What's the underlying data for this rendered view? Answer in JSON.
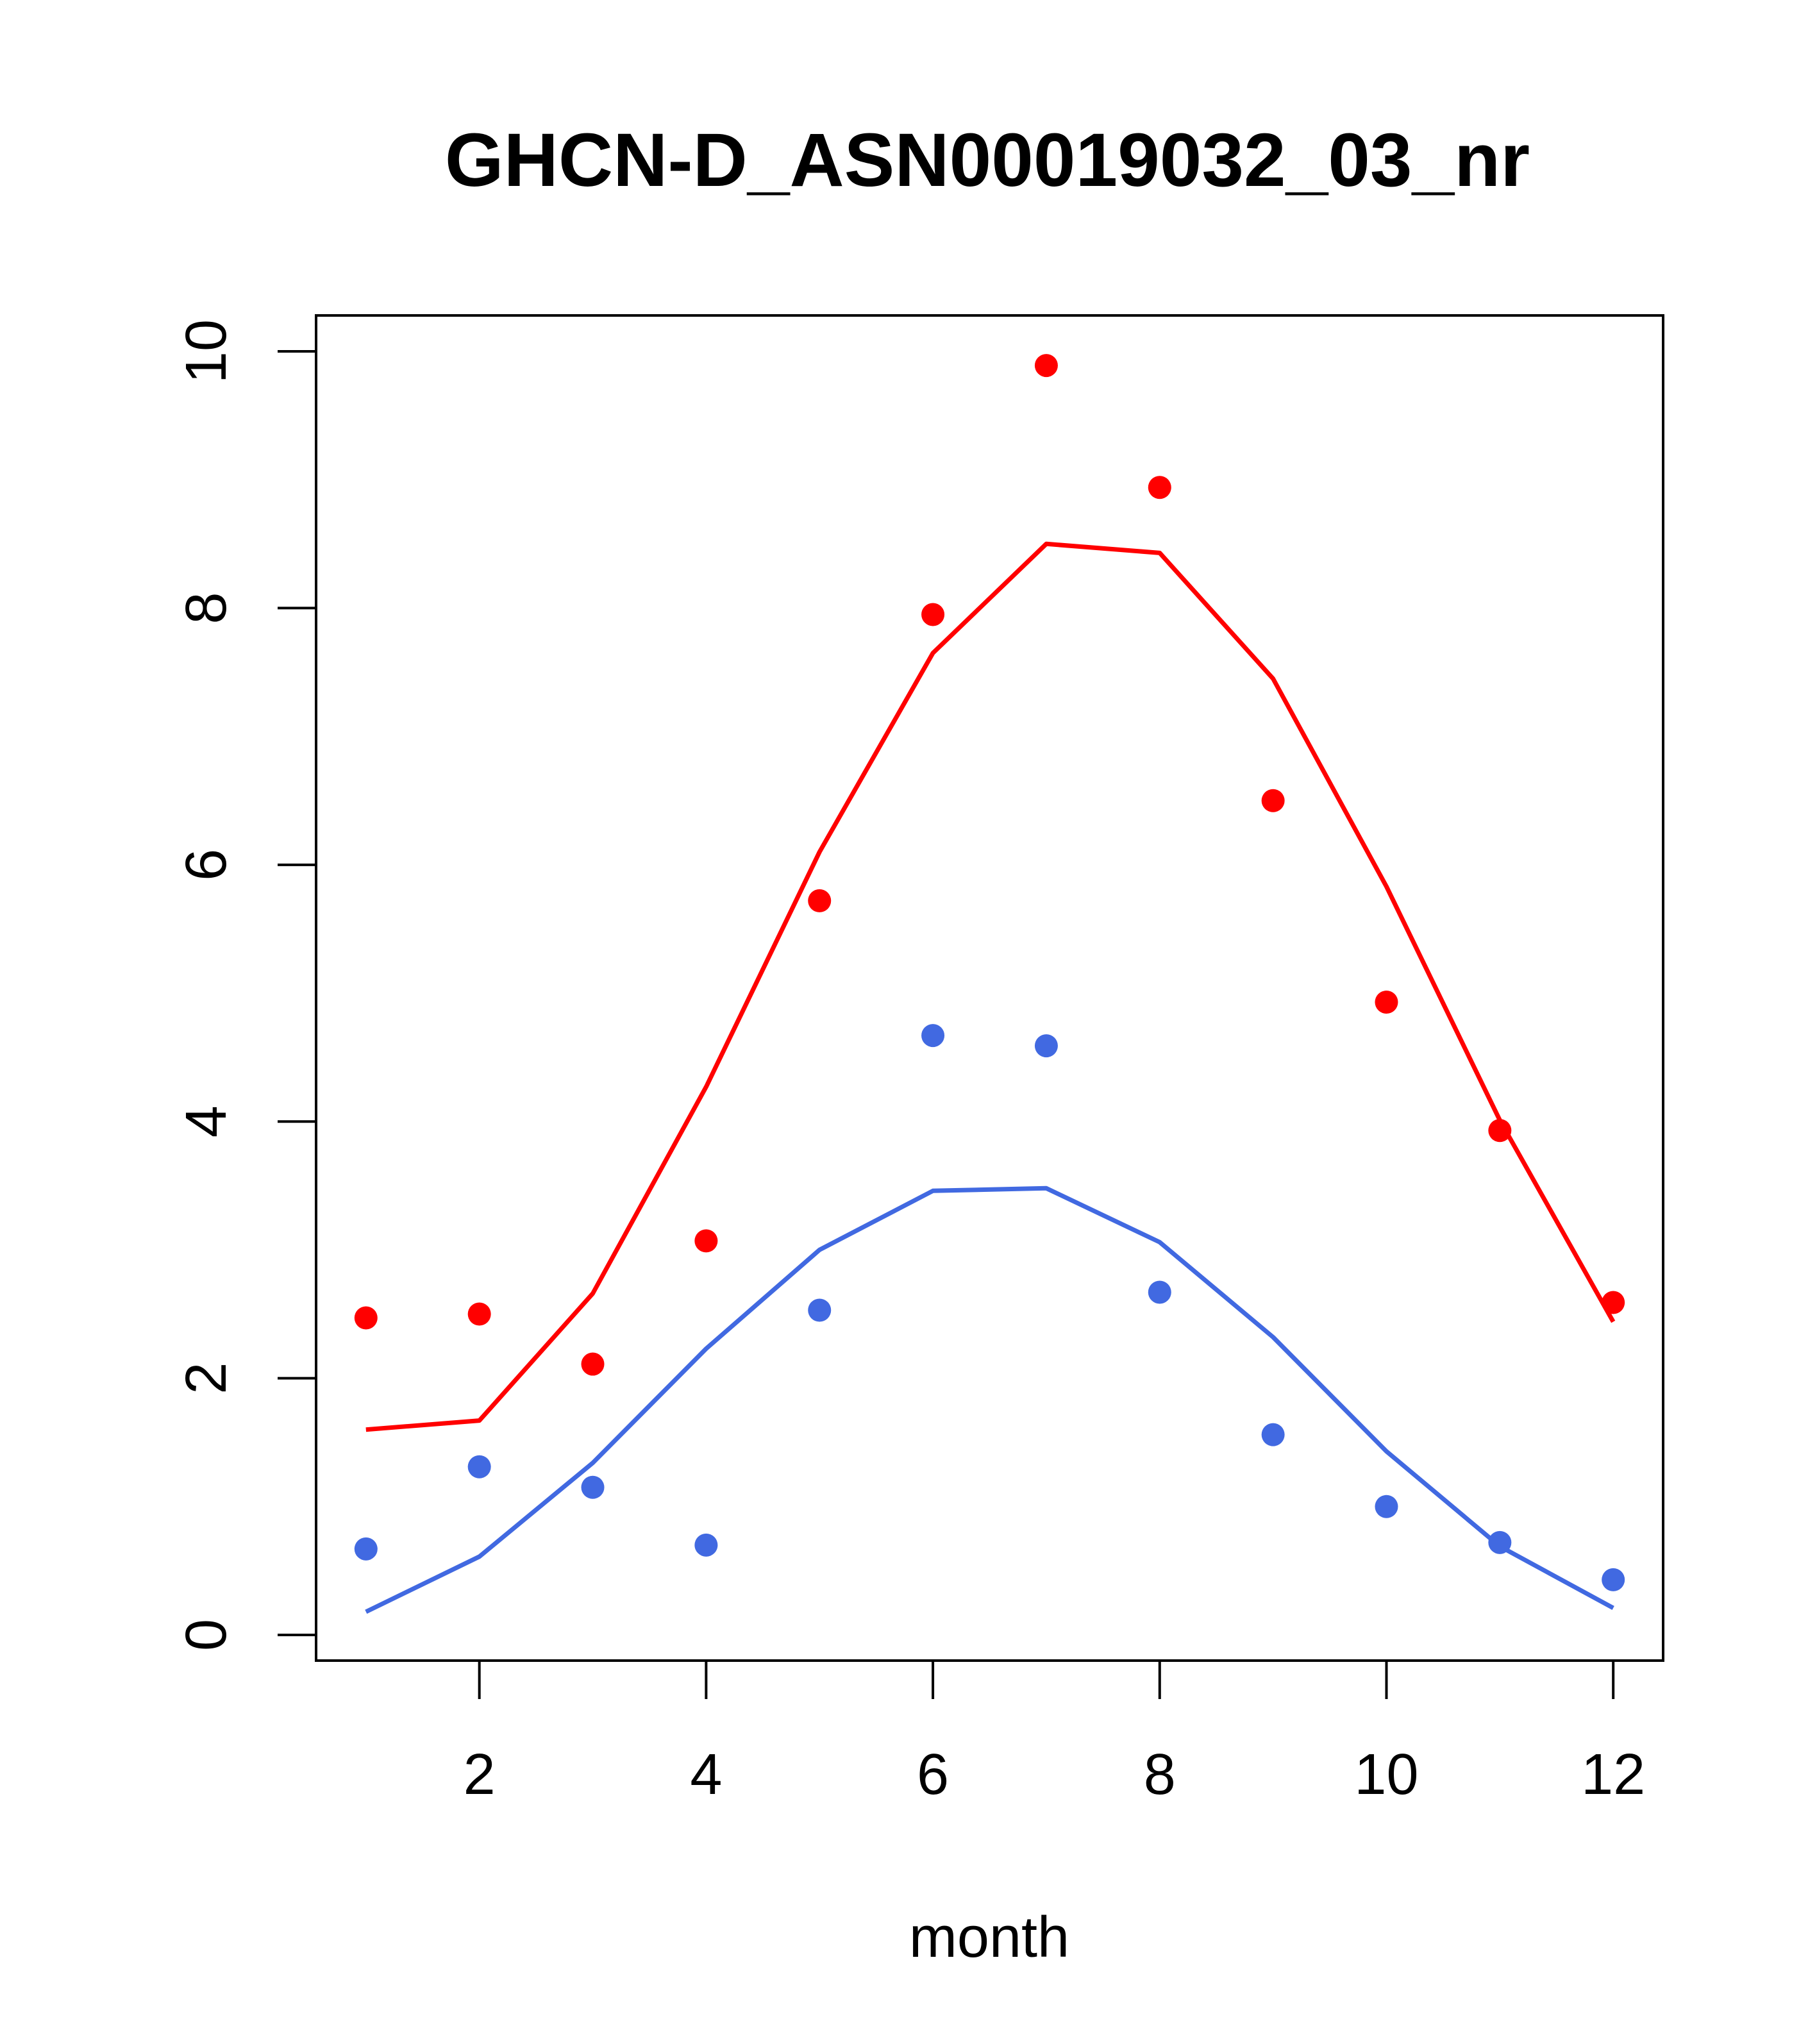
{
  "chart_data": {
    "type": "scatter",
    "title": "GHCN-D_ASN00019032_03_nr",
    "xlabel": "month",
    "ylabel": "",
    "xlim": [
      0.56,
      12.44
    ],
    "ylim": [
      -0.2,
      10.28
    ],
    "x_ticks": [
      2,
      4,
      6,
      8,
      10,
      12
    ],
    "y_ticks": [
      0,
      2,
      4,
      6,
      8,
      10
    ],
    "grid": false,
    "x": [
      1,
      2,
      3,
      4,
      5,
      6,
      7,
      8,
      9,
      10,
      11,
      12
    ],
    "series": [
      {
        "color": "#ff0000",
        "points": [
          2.47,
          2.5,
          2.11,
          3.07,
          5.72,
          7.95,
          9.89,
          8.94,
          6.5,
          4.93,
          3.93,
          2.59
        ],
        "curve": [
          1.6,
          1.67,
          2.66,
          4.27,
          6.1,
          7.65,
          8.5,
          8.43,
          7.45,
          5.83,
          4.01,
          2.44
        ]
      },
      {
        "color": "#4169e1",
        "points": [
          0.67,
          1.31,
          1.15,
          0.7,
          2.53,
          4.67,
          4.59,
          2.67,
          1.56,
          1.0,
          0.72,
          0.43
        ],
        "curve": [
          0.18,
          0.61,
          1.34,
          2.23,
          3.0,
          3.46,
          3.48,
          3.06,
          2.32,
          1.43,
          0.69,
          0.21
        ]
      }
    ]
  }
}
